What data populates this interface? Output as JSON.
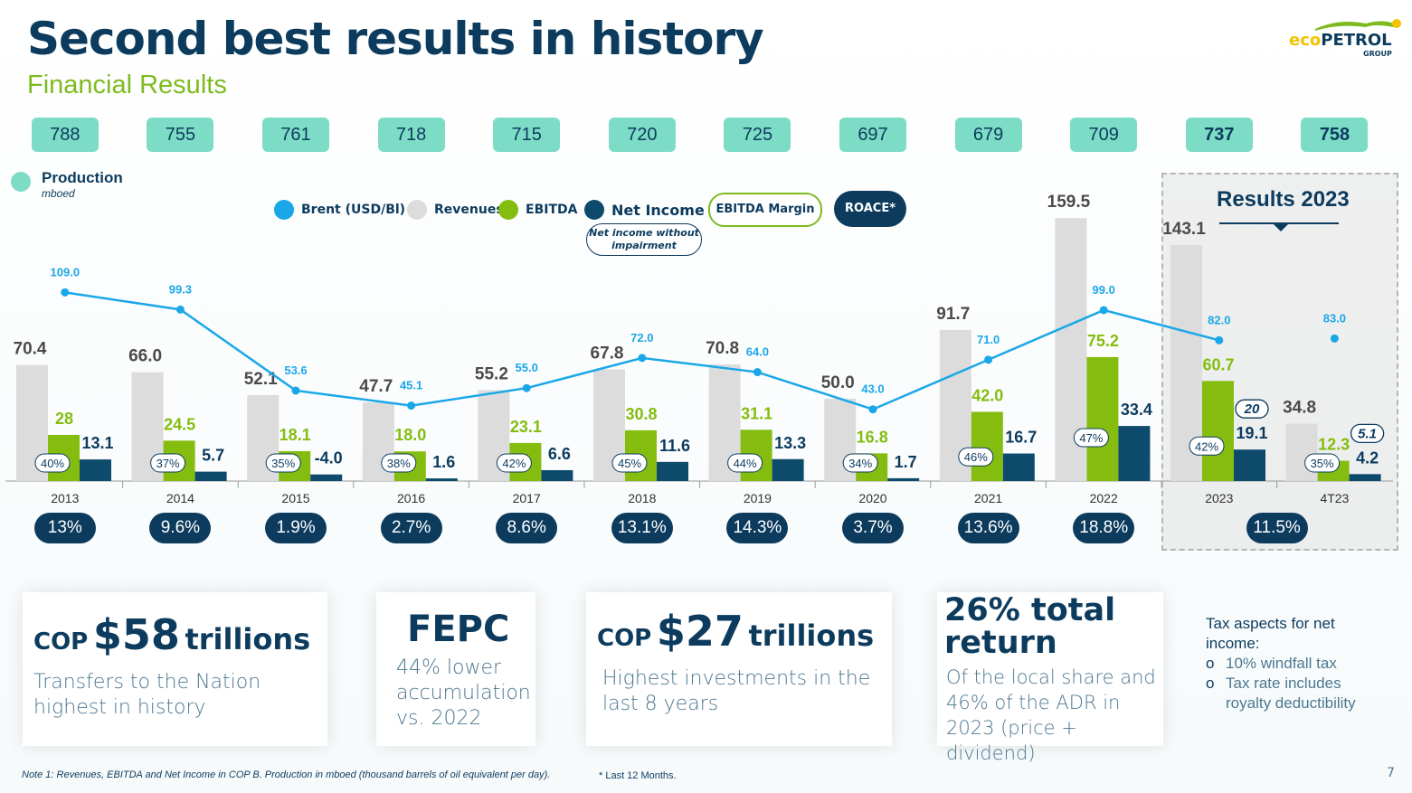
{
  "header": {
    "title": "Second best results in history",
    "subtitle": "Financial Results",
    "logo": {
      "part1": "eco",
      "part2": "PETROL",
      "tag": "GROUP"
    }
  },
  "production": {
    "label": "Production",
    "unit": "mboed",
    "values": [
      "788",
      "755",
      "761",
      "718",
      "715",
      "720",
      "725",
      "697",
      "679",
      "709",
      "737",
      "758"
    ]
  },
  "legend": {
    "brent": "Brent (USD/Bl)",
    "revenues": "Revenues",
    "ebitda": "EBITDA",
    "net_income": "Net Income",
    "ebitda_margin": "EBITDA Margin",
    "roace": "ROACE*",
    "net_income_no_impairment": "Net income without impairment"
  },
  "results_2023": {
    "title": "Results 2023"
  },
  "chart_data": {
    "type": "bar",
    "categories": [
      "2013",
      "2014",
      "2015",
      "2016",
      "2017",
      "2018",
      "2019",
      "2020",
      "2021",
      "2022",
      "2023",
      "4T23"
    ],
    "series": [
      {
        "name": "Revenues",
        "values": [
          70.4,
          66.0,
          52.1,
          47.7,
          55.2,
          67.8,
          70.8,
          50.0,
          91.7,
          159.5,
          143.1,
          34.8
        ],
        "labels": [
          "70.4",
          "66.0",
          "52.1",
          "47.7",
          "55.2",
          "67.8",
          "70.8",
          "50.0",
          "91.7",
          "159.5",
          "143.1",
          "34.8"
        ]
      },
      {
        "name": "EBITDA",
        "values": [
          28,
          24.5,
          18.1,
          18.0,
          23.1,
          30.8,
          31.1,
          16.8,
          42.0,
          75.2,
          60.7,
          12.3
        ],
        "labels": [
          "28",
          "24.5",
          "18.1",
          "18.0",
          "23.1",
          "30.8",
          "31.1",
          "16.8",
          "42.0",
          "75.2",
          "60.7",
          "12.3"
        ]
      },
      {
        "name": "Net Income",
        "values": [
          13.1,
          5.7,
          -4.0,
          1.6,
          6.6,
          11.6,
          13.3,
          1.7,
          16.7,
          33.4,
          19.1,
          4.2
        ],
        "labels": [
          "13.1",
          "5.7",
          "-4.0",
          "1.6",
          "6.6",
          "11.6",
          "13.3",
          "1.7",
          "16.7",
          "33.4",
          "19.1",
          "4.2"
        ]
      },
      {
        "name": "Brent (USD/Bl)",
        "values": [
          109.0,
          99.3,
          53.6,
          45.1,
          55.0,
          72.0,
          64.0,
          43.0,
          71.0,
          99.0,
          82.0,
          83.0
        ],
        "labels": [
          "109.0",
          "99.3",
          "53.6",
          "45.1",
          "55.0",
          "72.0",
          "64.0",
          "43.0",
          "71.0",
          "99.0",
          "82.0",
          "83.0"
        ]
      },
      {
        "name": "EBITDA Margin",
        "values": [
          "40%",
          "37%",
          "35%",
          "38%",
          "42%",
          "45%",
          "44%",
          "34%",
          "46%",
          "47%",
          "42%",
          "35%"
        ]
      }
    ],
    "net_income_without_impairment": [
      {
        "category": "2023",
        "value": "20"
      },
      {
        "category": "4T23",
        "value": "5.1"
      }
    ],
    "roace": [
      "13%",
      "9.6%",
      "1.9%",
      "2.7%",
      "8.6%",
      "13.1%",
      "14.3%",
      "3.7%",
      "13.6%",
      "18.8%",
      "11.5%"
    ],
    "grid": false
  },
  "cards": [
    {
      "prefix": "COP",
      "big": "$58",
      "suffix": "trillions",
      "sub": "Transfers to the Nation highest in history"
    },
    {
      "big": "FEPC",
      "sub": "44% lower accumulation vs. 2022"
    },
    {
      "prefix": "COP",
      "big": "$27",
      "suffix": "trillions",
      "sub": "Highest investments in the last 8 years"
    },
    {
      "big": "26% total return",
      "sub": "Of the local share and 46% of the ADR in 2023 (price + dividend)"
    }
  ],
  "tax": {
    "title": "Tax aspects for net income:",
    "items": [
      "10% windfall tax",
      "Tax rate includes royalty deductibility"
    ]
  },
  "footer": {
    "note1": "Note 1: Revenues, EBITDA and Net Income in COP B. Production in mboed (thousand barrels of oil equivalent per day).",
    "note2": "* Last 12 Months.",
    "page": "7"
  },
  "colors": {
    "revenues": "#dcdcdc",
    "ebitda": "#84bd10",
    "net_income": "#0d4a6b",
    "brent": "#1aa7e8",
    "navy": "#0c3b5e",
    "production": "#7ddcc6"
  }
}
